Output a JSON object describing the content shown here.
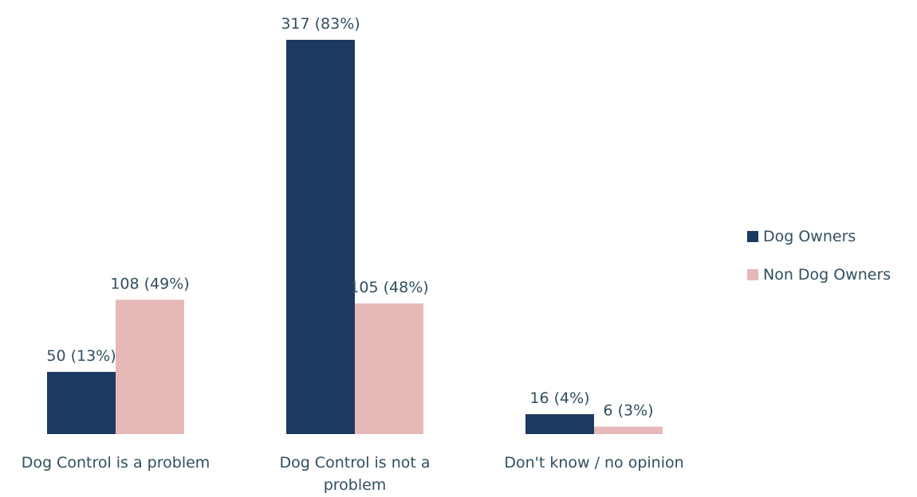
{
  "chart_data": {
    "type": "bar",
    "categories": [
      "Dog Control is a problem",
      "Dog Control is not a problem",
      "Don't know / no opinion"
    ],
    "series": [
      {
        "name": "Dog Owners",
        "color": "#1b3a5f",
        "values": [
          50,
          317,
          16
        ],
        "labels": [
          "50 (13%)",
          "317 (83%)",
          "16 (4%)"
        ]
      },
      {
        "name": "Non Dog Owners",
        "color": "#e6b8b7",
        "values": [
          108,
          105,
          6
        ],
        "labels": [
          "108 (49%)",
          "105 (48%)",
          "6 (3%)"
        ]
      }
    ],
    "ylim": [
      0,
      317
    ],
    "grid": false,
    "legend_position": "right"
  }
}
